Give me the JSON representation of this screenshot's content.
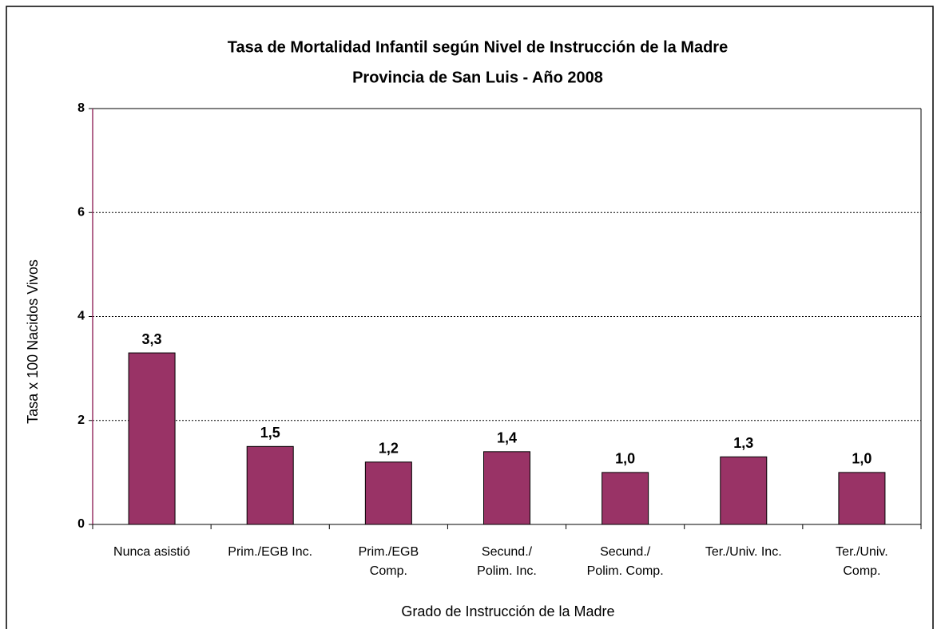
{
  "chart_data": {
    "type": "bar",
    "title": "Tasa de Mortalidad Infantil según Nivel de Instrucción de la Madre",
    "subtitle": "Provincia de San Luis - Año 2008",
    "x_label": "Grado de Instrucción de la Madre",
    "y_label": "Tasa x 100 Nacidos Vivos",
    "categories": [
      "Nunca asistió",
      "Prim./EGB Inc.",
      "Prim./EGB\nComp.",
      "Secund./\nPolim. Inc.",
      "Secund./\nPolim. Comp.",
      "Ter./Univ. Inc.",
      "Ter./Univ.\nComp."
    ],
    "values": [
      3.3,
      1.5,
      1.2,
      1.4,
      1.0,
      1.3,
      1.0
    ],
    "value_labels": [
      "3,3",
      "1,5",
      "1,2",
      "1,4",
      "1,0",
      "1,3",
      "1,0"
    ],
    "color": "#993366",
    "ylim": [
      0,
      8
    ],
    "yticks": [
      0,
      2,
      4,
      6,
      8
    ],
    "grid": true
  }
}
